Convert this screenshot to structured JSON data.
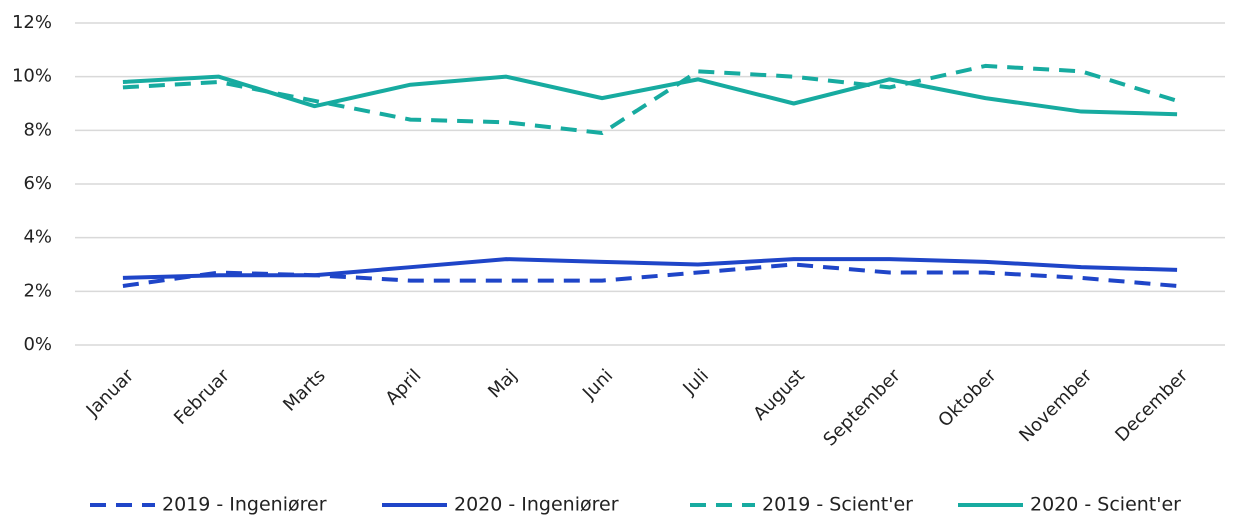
{
  "chart_data": {
    "type": "line",
    "categories": [
      "Januar",
      "Februar",
      "Marts",
      "April",
      "Maj",
      "Juni",
      "Juli",
      "August",
      "September",
      "Oktober",
      "November",
      "December"
    ],
    "series": [
      {
        "name": "2019 - Ingeniører",
        "color": "#1f45c8",
        "line_style": "dashed",
        "values": [
          2.2,
          2.7,
          2.6,
          2.4,
          2.4,
          2.4,
          2.7,
          3.0,
          2.7,
          2.7,
          2.5,
          2.2
        ]
      },
      {
        "name": "2020 - Ingeniører",
        "color": "#1f45c8",
        "line_style": "solid",
        "values": [
          2.5,
          2.6,
          2.6,
          2.9,
          3.2,
          3.1,
          3.0,
          3.2,
          3.2,
          3.1,
          2.9,
          2.8
        ]
      },
      {
        "name": "2019 - Scient'er",
        "color": "#17aba0",
        "line_style": "dashed",
        "values": [
          9.6,
          9.8,
          9.1,
          8.4,
          8.3,
          7.9,
          10.2,
          10.0,
          9.6,
          10.4,
          10.2,
          9.1
        ]
      },
      {
        "name": "2020 - Scient'er",
        "color": "#17aba0",
        "line_style": "solid",
        "values": [
          9.8,
          10.0,
          8.9,
          9.7,
          10.0,
          9.2,
          9.9,
          9.0,
          9.9,
          9.2,
          8.7,
          8.6
        ]
      }
    ],
    "ylim": [
      0,
      12
    ],
    "yticks": [
      {
        "value": 0,
        "label": "0%"
      },
      {
        "value": 2,
        "label": "2%"
      },
      {
        "value": 4,
        "label": "4%"
      },
      {
        "value": 6,
        "label": "6%"
      },
      {
        "value": 8,
        "label": "8%"
      },
      {
        "value": 10,
        "label": "10%"
      },
      {
        "value": 12,
        "label": "12%"
      }
    ],
    "grid": true,
    "legend": "bottom"
  }
}
